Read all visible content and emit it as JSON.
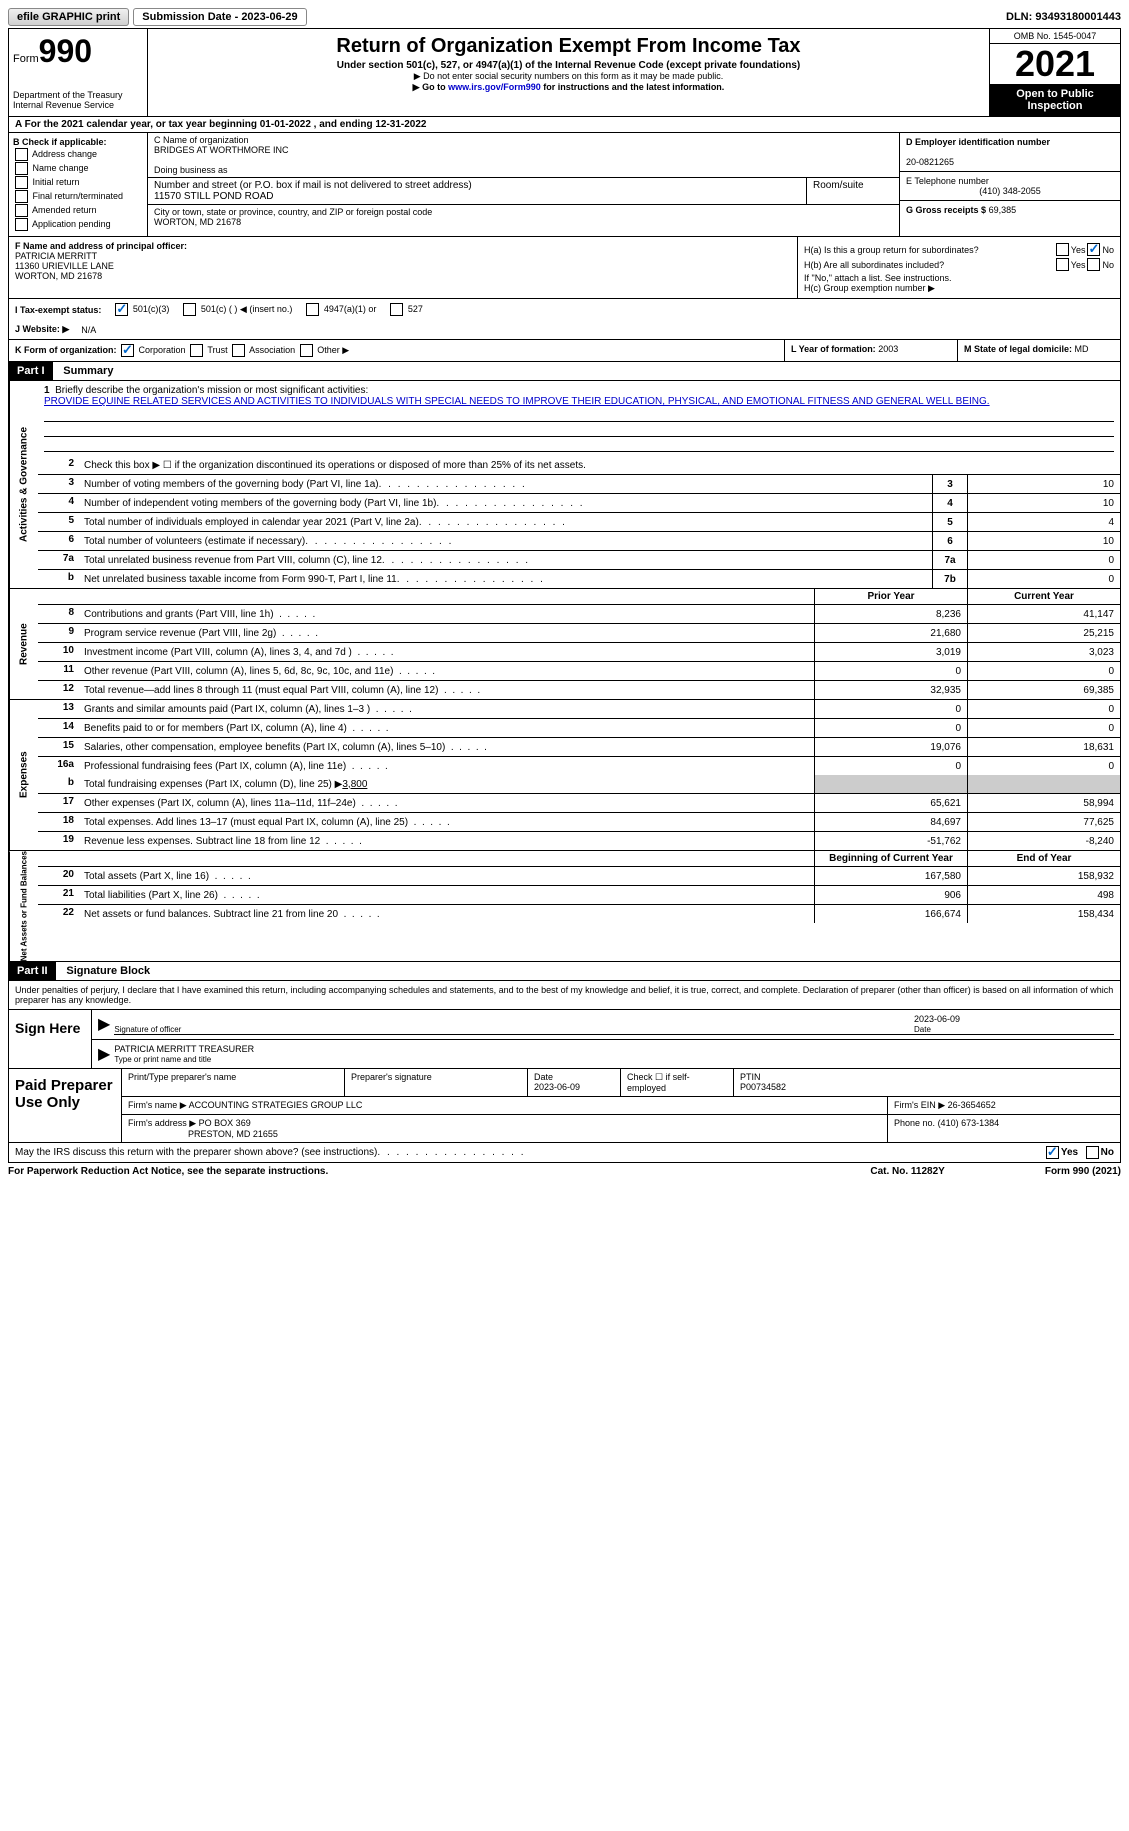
{
  "topbar": {
    "efile_label": "efile GRAPHIC print",
    "submission_label": "Submission Date - 2023-06-29",
    "dln": "DLN: 93493180001443"
  },
  "header": {
    "form_word": "Form",
    "form_num": "990",
    "dept": "Department of the Treasury Internal Revenue Service",
    "title": "Return of Organization Exempt From Income Tax",
    "subtitle": "Under section 501(c), 527, or 4947(a)(1) of the Internal Revenue Code (except private foundations)",
    "note1": "▶ Do not enter social security numbers on this form as it may be made public.",
    "note2_pre": "▶ Go to ",
    "note2_link": "www.irs.gov/Form990",
    "note2_post": " for instructions and the latest information.",
    "omb": "OMB No. 1545-0047",
    "year": "2021",
    "inspect": "Open to Public Inspection"
  },
  "row_a_pre": "A For the 2021 calendar year, or tax year beginning ",
  "row_a_begin": "01-01-2022",
  "row_a_mid": "   , and ending ",
  "row_a_end": "12-31-2022",
  "b": {
    "label": "B Check if applicable:",
    "opts": [
      "Address change",
      "Name change",
      "Initial return",
      "Final return/terminated",
      "Amended return",
      "Application pending"
    ]
  },
  "c": {
    "name_label": "C Name of organization",
    "name": "BRIDGES AT WORTHMORE INC",
    "dba_label": "Doing business as",
    "street_label": "Number and street (or P.O. box if mail is not delivered to street address)",
    "street": "11570 STILL POND ROAD",
    "room_label": "Room/suite",
    "city_label": "City or town, state or province, country, and ZIP or foreign postal code",
    "city": "WORTON, MD  21678"
  },
  "d": {
    "ein_label": "D Employer identification number",
    "ein": "20-0821265",
    "phone_label": "E Telephone number",
    "phone": "(410) 348-2055",
    "gross_label": "G Gross receipts $",
    "gross": "69,385"
  },
  "f": {
    "label": "F  Name and address of principal officer:",
    "name": "PATRICIA MERRITT",
    "addr1": "11360 URIEVILLE LANE",
    "addr2": "WORTON, MD  21678"
  },
  "h": {
    "a_label": "H(a)  Is this a group return for subordinates?",
    "b_label": "H(b)  Are all subordinates included?",
    "b_note": "If \"No,\" attach a list. See instructions.",
    "c_label": "H(c)  Group exemption number ▶",
    "yes": "Yes",
    "no": "No"
  },
  "i": {
    "label": "I  Tax-exempt status:",
    "o1": "501(c)(3)",
    "o2": "501(c) (   ) ◀ (insert no.)",
    "o3": "4947(a)(1) or",
    "o4": "527"
  },
  "j": {
    "label": "J  Website: ▶",
    "val": "N/A"
  },
  "k": {
    "label": "K Form of organization:",
    "o1": "Corporation",
    "o2": "Trust",
    "o3": "Association",
    "o4": "Other ▶"
  },
  "l": {
    "label": "L Year of formation:",
    "val": "2003"
  },
  "m": {
    "label": "M State of legal domicile:",
    "val": "MD"
  },
  "part1": {
    "hdr": "Part I",
    "title": "Summary"
  },
  "mission": {
    "label": "Briefly describe the organization's mission or most significant activities:",
    "text": "PROVIDE EQUINE RELATED SERVICES AND ACTIVITIES TO INDIVIDUALS WITH SPECIAL NEEDS TO IMPROVE THEIR EDUCATION, PHYSICAL, AND EMOTIONAL FITNESS AND GENERAL WELL BEING."
  },
  "line2": "Check this box ▶ ☐  if the organization discontinued its operations or disposed of more than 25% of its net assets.",
  "summary_lines": [
    {
      "n": "3",
      "t": "Number of voting members of the governing body (Part VI, line 1a)",
      "b": "3",
      "v": "10"
    },
    {
      "n": "4",
      "t": "Number of independent voting members of the governing body (Part VI, line 1b)",
      "b": "4",
      "v": "10"
    },
    {
      "n": "5",
      "t": "Total number of individuals employed in calendar year 2021 (Part V, line 2a)",
      "b": "5",
      "v": "4"
    },
    {
      "n": "6",
      "t": "Total number of volunteers (estimate if necessary)",
      "b": "6",
      "v": "10"
    },
    {
      "n": "7a",
      "t": "Total unrelated business revenue from Part VIII, column (C), line 12",
      "b": "7a",
      "v": "0"
    },
    {
      "n": "b",
      "t": "Net unrelated business taxable income from Form 990-T, Part I, line 11",
      "b": "7b",
      "v": "0"
    }
  ],
  "col_hdrs": {
    "prior": "Prior Year",
    "current": "Current Year"
  },
  "revenue_lines": [
    {
      "n": "8",
      "t": "Contributions and grants (Part VIII, line 1h)",
      "p": "8,236",
      "c": "41,147"
    },
    {
      "n": "9",
      "t": "Program service revenue (Part VIII, line 2g)",
      "p": "21,680",
      "c": "25,215"
    },
    {
      "n": "10",
      "t": "Investment income (Part VIII, column (A), lines 3, 4, and 7d )",
      "p": "3,019",
      "c": "3,023"
    },
    {
      "n": "11",
      "t": "Other revenue (Part VIII, column (A), lines 5, 6d, 8c, 9c, 10c, and 11e)",
      "p": "0",
      "c": "0"
    },
    {
      "n": "12",
      "t": "Total revenue—add lines 8 through 11 (must equal Part VIII, column (A), line 12)",
      "p": "32,935",
      "c": "69,385"
    }
  ],
  "expense_lines": [
    {
      "n": "13",
      "t": "Grants and similar amounts paid (Part IX, column (A), lines 1–3 )",
      "p": "0",
      "c": "0"
    },
    {
      "n": "14",
      "t": "Benefits paid to or for members (Part IX, column (A), line 4)",
      "p": "0",
      "c": "0"
    },
    {
      "n": "15",
      "t": "Salaries, other compensation, employee benefits (Part IX, column (A), lines 5–10)",
      "p": "19,076",
      "c": "18,631"
    },
    {
      "n": "16a",
      "t": "Professional fundraising fees (Part IX, column (A), line 11e)",
      "p": "0",
      "c": "0"
    }
  ],
  "line16b": {
    "n": "b",
    "t": "Total fundraising expenses (Part IX, column (D), line 25) ▶",
    "v": "3,800"
  },
  "expense_lines2": [
    {
      "n": "17",
      "t": "Other expenses (Part IX, column (A), lines 11a–11d, 11f–24e)",
      "p": "65,621",
      "c": "58,994"
    },
    {
      "n": "18",
      "t": "Total expenses. Add lines 13–17 (must equal Part IX, column (A), line 25)",
      "p": "84,697",
      "c": "77,625"
    },
    {
      "n": "19",
      "t": "Revenue less expenses. Subtract line 18 from line 12",
      "p": "-51,762",
      "c": "-8,240"
    }
  ],
  "net_hdrs": {
    "begin": "Beginning of Current Year",
    "end": "End of Year"
  },
  "net_lines": [
    {
      "n": "20",
      "t": "Total assets (Part X, line 16)",
      "p": "167,580",
      "c": "158,932"
    },
    {
      "n": "21",
      "t": "Total liabilities (Part X, line 26)",
      "p": "906",
      "c": "498"
    },
    {
      "n": "22",
      "t": "Net assets or fund balances. Subtract line 21 from line 20",
      "p": "166,674",
      "c": "158,434"
    }
  ],
  "side_labels": {
    "ag": "Activities & Governance",
    "rev": "Revenue",
    "exp": "Expenses",
    "net": "Net Assets or Fund Balances"
  },
  "part2": {
    "hdr": "Part II",
    "title": "Signature Block"
  },
  "sig": {
    "declare": "Under penalties of perjury, I declare that I have examined this return, including accompanying schedules and statements, and to the best of my knowledge and belief, it is true, correct, and complete. Declaration of preparer (other than officer) is based on all information of which preparer has any knowledge.",
    "sign_here": "Sign Here",
    "sig_officer": "Signature of officer",
    "date_label": "Date",
    "date": "2023-06-09",
    "name_title": "PATRICIA MERRITT  TREASURER",
    "type_label": "Type or print name and title"
  },
  "prep": {
    "label": "Paid Preparer Use Only",
    "print_label": "Print/Type preparer's name",
    "sig_label": "Preparer's signature",
    "date_label": "Date",
    "date": "2023-06-09",
    "check_label": "Check ☐ if self-employed",
    "ptin_label": "PTIN",
    "ptin": "P00734582",
    "firm_name_label": "Firm's name      ▶",
    "firm_name": "ACCOUNTING STRATEGIES GROUP LLC",
    "firm_ein_label": "Firm's EIN ▶",
    "firm_ein": "26-3654652",
    "firm_addr_label": "Firm's address ▶",
    "firm_addr1": "PO BOX 369",
    "firm_addr2": "PRESTON, MD  21655",
    "phone_label": "Phone no.",
    "phone": "(410) 673-1384"
  },
  "footer": {
    "discuss": "May the IRS discuss this return with the preparer shown above? (see instructions)",
    "yes": "Yes",
    "no": "No",
    "paperwork": "For Paperwork Reduction Act Notice, see the separate instructions.",
    "cat": "Cat. No. 11282Y",
    "form": "Form 990 (2021)"
  }
}
